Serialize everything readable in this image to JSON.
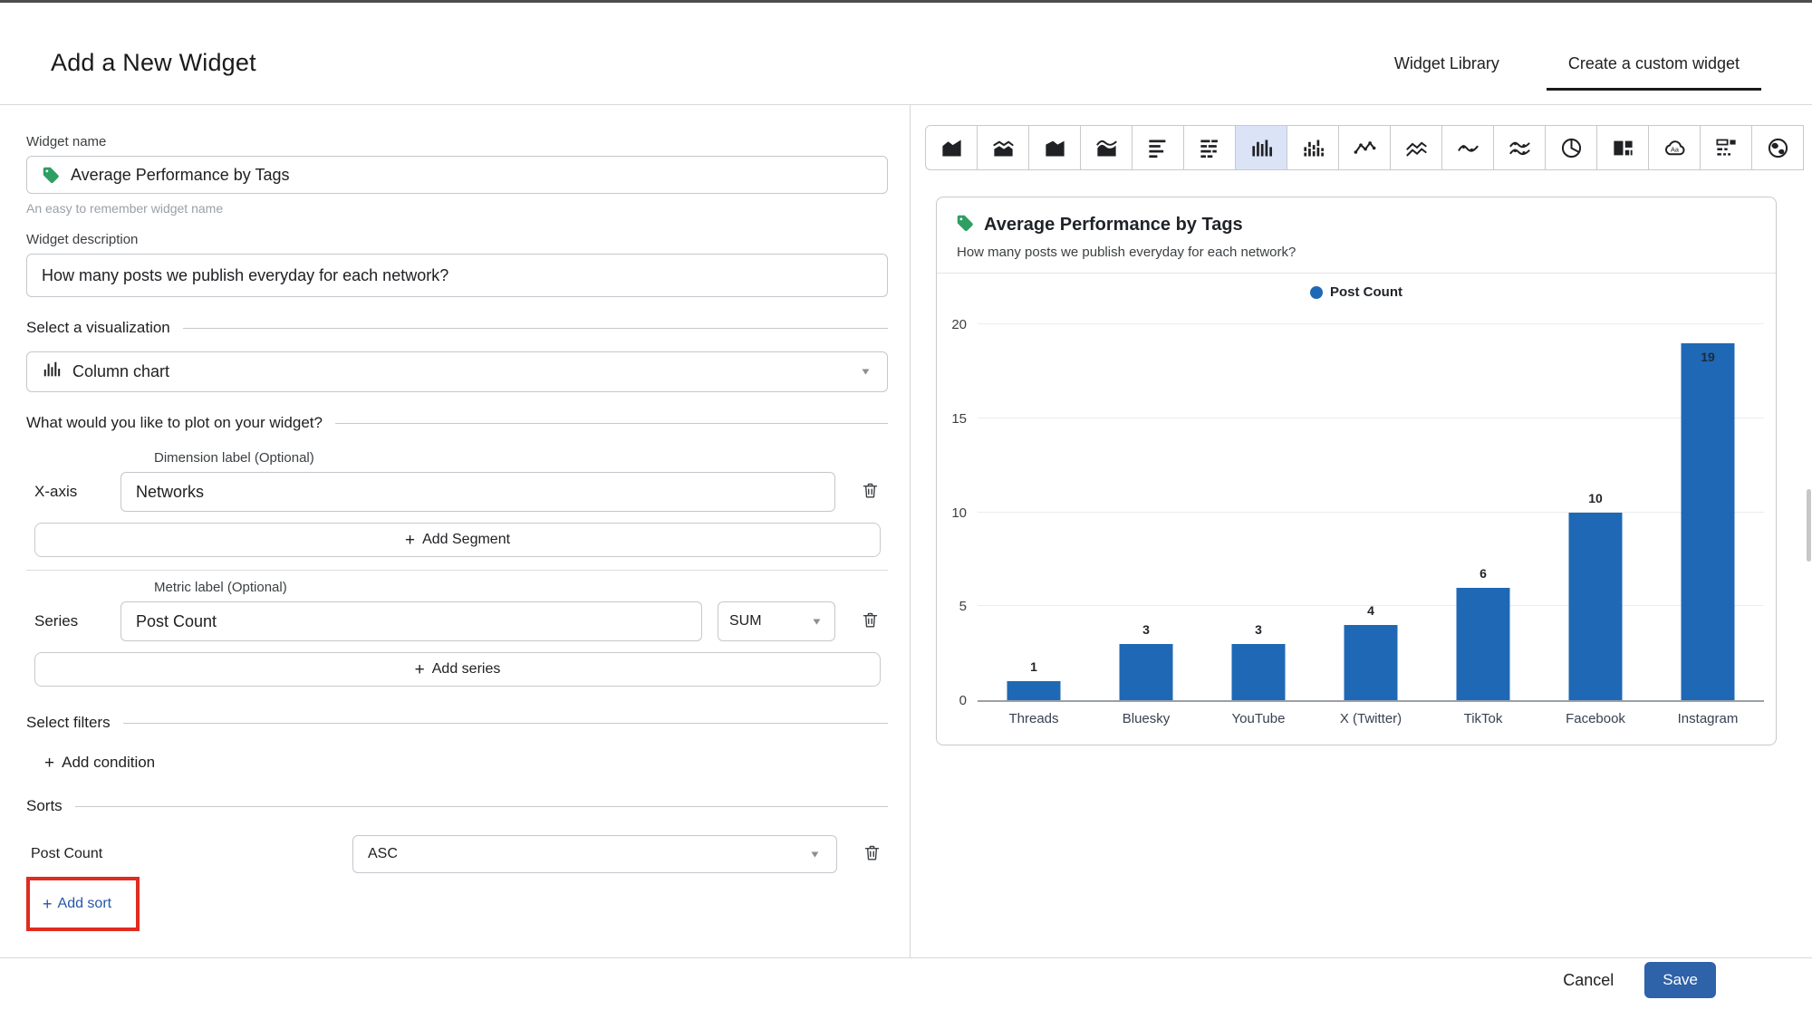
{
  "page": {
    "title": "Add a New Widget"
  },
  "tabs": {
    "widget_library": "Widget Library",
    "create_custom": "Create a custom widget"
  },
  "form": {
    "widget_name": {
      "label": "Widget name",
      "value": "Average Performance by Tags",
      "helper": "An easy to remember widget name",
      "icon": "tag-icon"
    },
    "widget_description": {
      "label": "Widget description",
      "value": "How many posts we publish everyday for each network?"
    },
    "visualization": {
      "section_title": "Select a visualization",
      "selected": "Column chart",
      "icon": "column-chart-icon"
    },
    "plot_section_title": "What would you like to plot on your widget?",
    "x_axis": {
      "row_label": "X-axis",
      "field_label": "Dimension label (Optional)",
      "value": "Networks"
    },
    "add_segment_label": "Add Segment",
    "series": {
      "row_label": "Series",
      "field_label": "Metric label (Optional)",
      "value": "Post Count",
      "aggregation": "SUM"
    },
    "add_series_label": "Add series",
    "filters": {
      "section_title": "Select filters",
      "add_condition_label": "Add condition"
    },
    "sorts": {
      "section_title": "Sorts",
      "sort_field": "Post Count",
      "sort_direction": "ASC",
      "add_sort_label": "Add sort"
    }
  },
  "toolbar": {
    "selected_index": 6,
    "icons": [
      "area-chart",
      "stacked-area-chart",
      "area-chart-alt",
      "smooth-area-chart",
      "bar-chart-horizontal",
      "stacked-bar-chart-horizontal",
      "column-chart",
      "stacked-column-chart",
      "line-chart",
      "multi-line-chart",
      "spline-chart",
      "multi-spline-chart",
      "pie-chart",
      "treemap-chart",
      "word-cloud",
      "summary-table",
      "map-chart"
    ]
  },
  "chart_data": {
    "type": "bar",
    "title": "Average Performance by Tags",
    "subtitle": "How many posts we publish everyday for each network?",
    "categories": [
      "Threads",
      "Bluesky",
      "YouTube",
      "X (Twitter)",
      "TikTok",
      "Facebook",
      "Instagram"
    ],
    "values": [
      1,
      3,
      3,
      4,
      6,
      10,
      19
    ],
    "series_name": "Post Count",
    "ylim": [
      0,
      20
    ],
    "yticks": [
      0,
      5,
      10,
      15,
      20
    ],
    "grid": true,
    "legend_position": "top",
    "data_labels": true
  },
  "footer": {
    "cancel_label": "Cancel",
    "save_label": "Save"
  },
  "colors": {
    "bar_blue": "#1f68b5",
    "save_blue": "#2e62a9",
    "link_blue": "#2456a8",
    "tag_green": "#2f9e62",
    "annotation_red": "#e02b20",
    "toolbar_selected_bg": "#dbe3f7"
  }
}
